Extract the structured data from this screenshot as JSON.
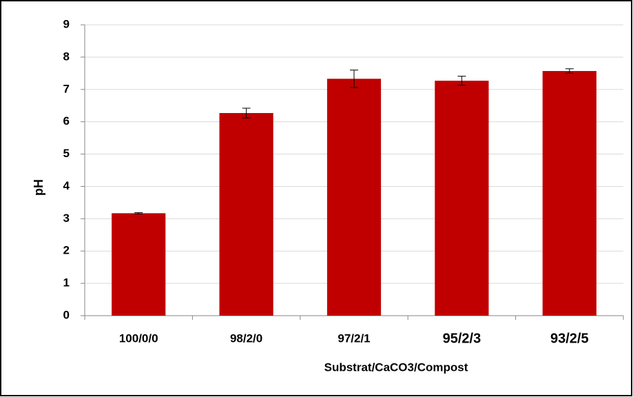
{
  "chart_data": {
    "type": "bar",
    "categories": [
      "100/0/0",
      "98/2/0",
      "97/2/1",
      "95/2/3",
      "93/2/5"
    ],
    "values": [
      3.17,
      6.27,
      7.33,
      7.27,
      7.57
    ],
    "errors": [
      0.02,
      0.15,
      0.27,
      0.14,
      0.07
    ],
    "color": "#c00000",
    "x_label": "Substrat/CaCO3/Compost",
    "y_label": "pH",
    "ylim": [
      0,
      9
    ],
    "yticks": [
      0,
      1,
      2,
      3,
      4,
      5,
      6,
      7,
      8,
      9
    ],
    "grid": true
  }
}
